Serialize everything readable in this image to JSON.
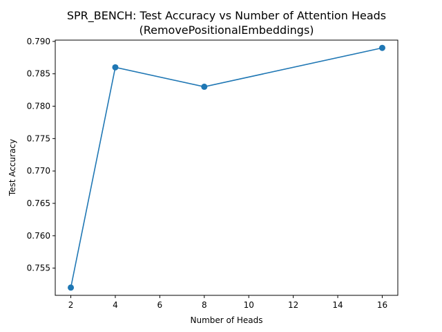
{
  "chart_data": {
    "type": "line",
    "title": "SPR_BENCH: Test Accuracy vs Number of Attention Heads",
    "subtitle": "(RemovePositionalEmbeddings)",
    "xlabel": "Number of Heads",
    "ylabel": "Test Accuracy",
    "xlim": [
      1.3,
      16.7
    ],
    "ylim": [
      0.7508,
      0.7902
    ],
    "x_ticks": [
      2,
      4,
      6,
      8,
      10,
      12,
      14,
      16
    ],
    "x_tick_labels": [
      "2",
      "4",
      "6",
      "8",
      "10",
      "12",
      "14",
      "16"
    ],
    "y_ticks": [
      0.755,
      0.76,
      0.765,
      0.77,
      0.775,
      0.78,
      0.785,
      0.79
    ],
    "y_tick_labels": [
      "0.755",
      "0.760",
      "0.765",
      "0.770",
      "0.775",
      "0.780",
      "0.785",
      "0.790"
    ],
    "grid": false,
    "series": [
      {
        "color": "#1f77b4",
        "marker": "circle",
        "x": [
          2,
          4,
          8,
          16
        ],
        "y": [
          0.752,
          0.786,
          0.783,
          0.789
        ]
      }
    ]
  }
}
